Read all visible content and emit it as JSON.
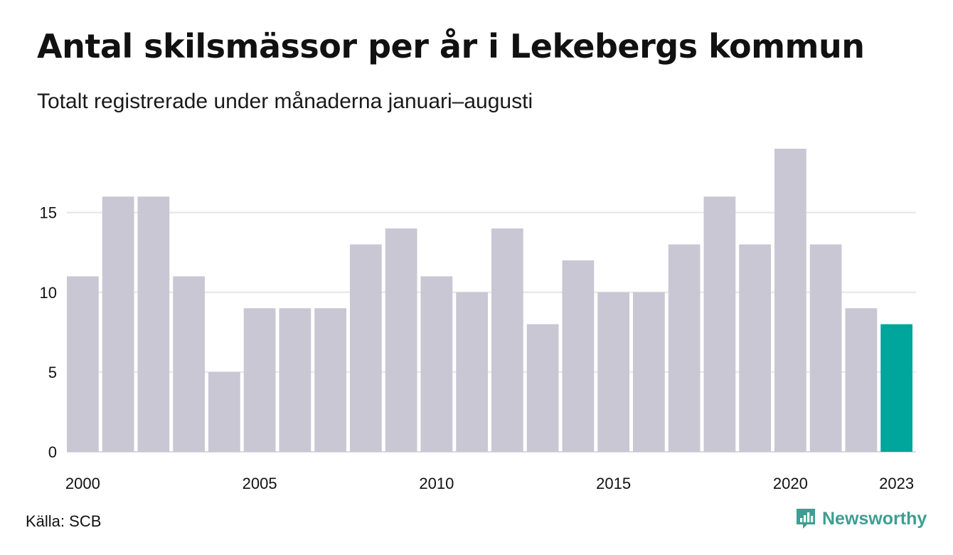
{
  "header": {
    "title": "Antal skilsmässor per år i Lekebergs kommun",
    "subtitle": "Totalt registrerade under månaderna januari–augusti"
  },
  "footer": {
    "source": "Källa: SCB",
    "brand": "Newsworthy"
  },
  "colors": {
    "bar": "#c8c7d3",
    "highlight": "#00a59b",
    "grid": "#e6e6e6",
    "brand": "#3e9e92"
  },
  "icons": {
    "brand_logo": "newsworthy-logo-icon"
  },
  "chart_data": {
    "type": "bar",
    "categories": [
      "2000",
      "2001",
      "2002",
      "2003",
      "2004",
      "2005",
      "2006",
      "2007",
      "2008",
      "2009",
      "2010",
      "2011",
      "2012",
      "2013",
      "2014",
      "2015",
      "2016",
      "2017",
      "2018",
      "2019",
      "2020",
      "2021",
      "2022",
      "2023"
    ],
    "values": [
      11,
      16,
      16,
      11,
      5,
      9,
      9,
      9,
      13,
      14,
      11,
      10,
      14,
      8,
      12,
      10,
      10,
      13,
      16,
      13,
      19,
      13,
      9,
      8
    ],
    "highlight": "2023",
    "x_tick_labels": [
      "2000",
      "2005",
      "2010",
      "2015",
      "2020",
      "2023"
    ],
    "y_ticks": [
      0,
      5,
      10,
      15
    ],
    "ylim": [
      0,
      19
    ],
    "xlabel": "",
    "ylabel": "",
    "grid": true,
    "legend": "none"
  }
}
